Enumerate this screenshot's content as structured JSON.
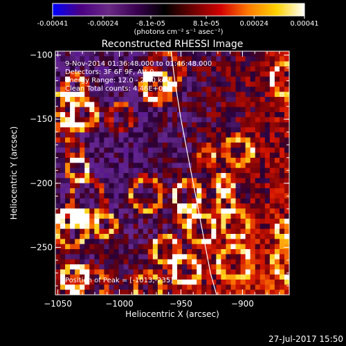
{
  "colorbar": {
    "stops": [
      "#0000ff",
      "#4b0082",
      "#6a2a86",
      "#3a0050",
      "#000000",
      "#6b0000",
      "#d20000",
      "#ff7a00",
      "#ffd200",
      "#ffffff"
    ],
    "tick_labels": [
      "-0.00041",
      "-0.00024",
      "-8.1e-05",
      "8.1e-05",
      "0.00024",
      "0.00041"
    ],
    "units": "(photons cm⁻² s⁻¹ asec⁻²)"
  },
  "chart_data": {
    "type": "heatmap",
    "title": "Reconstructed RHESSI Image",
    "xlabel": "Heliocentric X (arcsec)",
    "ylabel": "Heliocentric Y (arcsec)",
    "xlim": [
      -1052,
      -862
    ],
    "ylim": [
      -287,
      -97
    ],
    "x_ticks": [
      -1050,
      -1000,
      -950,
      -900
    ],
    "y_ticks": [
      -100,
      -150,
      -200,
      -250
    ],
    "value_range": [
      -0.00041,
      0.00041
    ],
    "limb_curve": {
      "x": [
        -958,
        -955,
        -950,
        -944,
        -938,
        -932,
        -926,
        -921
      ],
      "y": [
        -97,
        -120,
        -150,
        -180,
        -210,
        -240,
        -270,
        -287
      ]
    },
    "peak": {
      "x": -1013,
      "y": -235
    },
    "annotations": [
      "9-Nov-2014 01:36:48.000 to 01:46:48.000",
      "Detectors: 3F 6F 9F, Att 0",
      "Energy Range: 12.0 - 25.0 keV",
      "Clean     Total counts: 4.46E+03"
    ],
    "peak_label": "Position of Peak = [-1013,-235]"
  },
  "footer": {
    "date": "27-Jul-2017 15:50"
  }
}
